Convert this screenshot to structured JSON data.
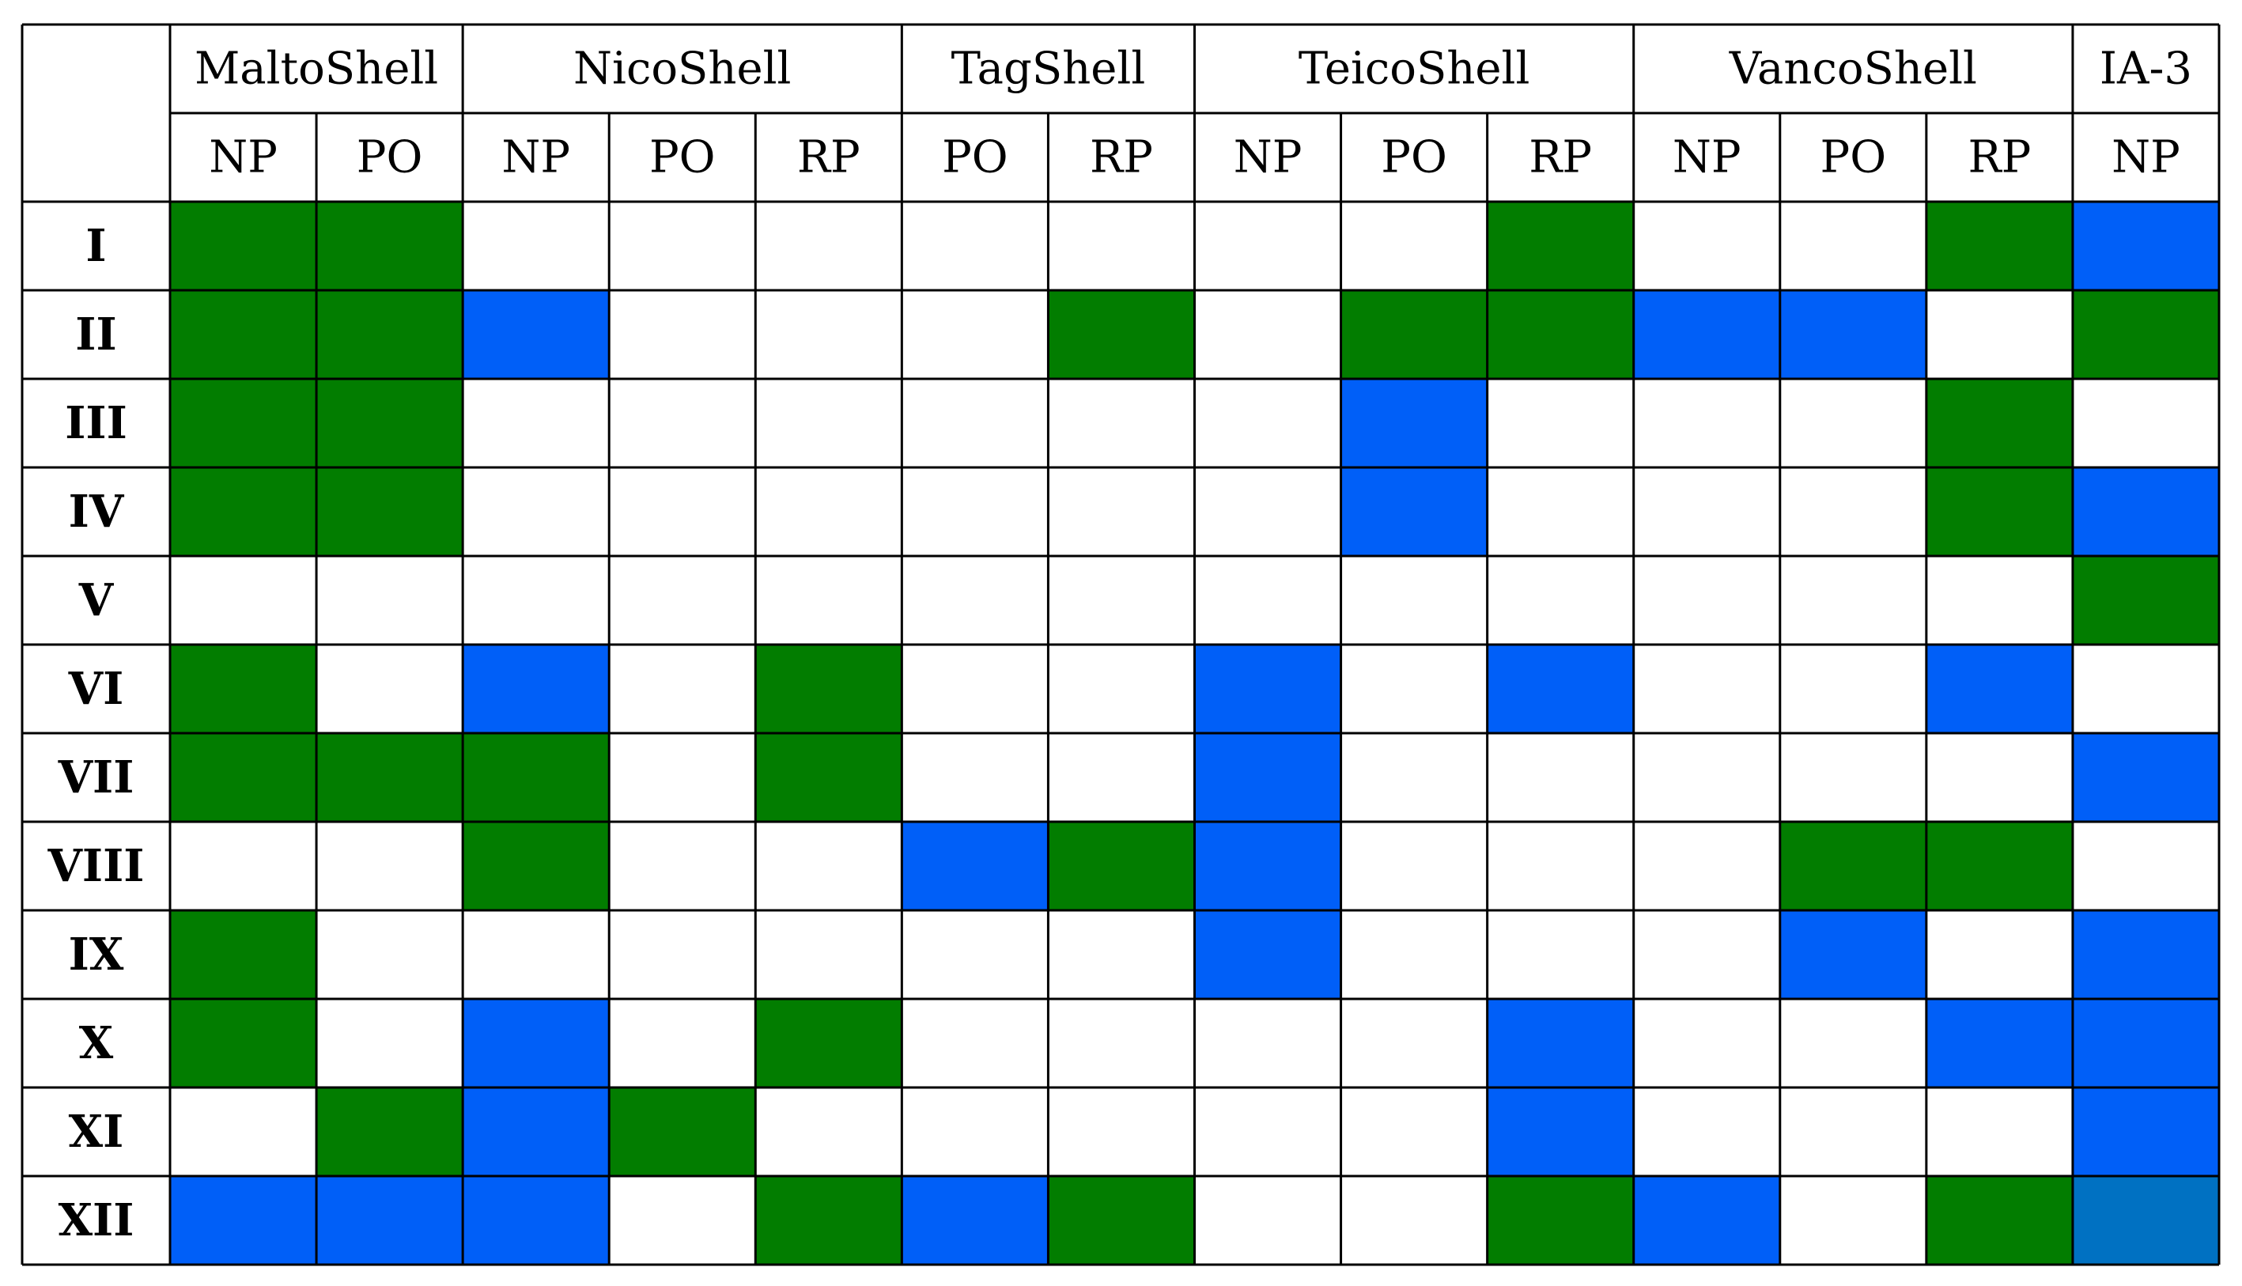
{
  "chart_data": {
    "type": "heatmap",
    "column_groups": [
      {
        "name": "MaltoShell",
        "subcolumns": [
          "NP",
          "PO"
        ]
      },
      {
        "name": "NicoShell",
        "subcolumns": [
          "NP",
          "PO",
          "RP"
        ]
      },
      {
        "name": "TagShell",
        "subcolumns": [
          "PO",
          "RP"
        ]
      },
      {
        "name": "TeicoShell",
        "subcolumns": [
          "NP",
          "PO",
          "RP"
        ]
      },
      {
        "name": "VancoShell",
        "subcolumns": [
          "NP",
          "PO",
          "RP"
        ]
      },
      {
        "name": "IA-3",
        "subcolumns": [
          "NP"
        ]
      }
    ],
    "rows": [
      "I",
      "II",
      "III",
      "IV",
      "V",
      "VI",
      "VII",
      "VIII",
      "IX",
      "X",
      "XI",
      "XII"
    ],
    "cell_colors": {
      "G": "#027d00",
      "B": "#005ff8",
      "D": "#0071c2",
      "W": "#ffffff"
    },
    "cells": [
      [
        "G",
        "G",
        "W",
        "W",
        "W",
        "W",
        "W",
        "W",
        "W",
        "G",
        "W",
        "W",
        "G",
        "B"
      ],
      [
        "G",
        "G",
        "B",
        "W",
        "W",
        "W",
        "G",
        "W",
        "G",
        "G",
        "B",
        "B",
        "W",
        "G"
      ],
      [
        "G",
        "G",
        "W",
        "W",
        "W",
        "W",
        "W",
        "W",
        "B",
        "W",
        "W",
        "W",
        "G",
        "W"
      ],
      [
        "G",
        "G",
        "W",
        "W",
        "W",
        "W",
        "W",
        "W",
        "B",
        "W",
        "W",
        "W",
        "G",
        "B"
      ],
      [
        "W",
        "W",
        "W",
        "W",
        "W",
        "W",
        "W",
        "W",
        "W",
        "W",
        "W",
        "W",
        "W",
        "G"
      ],
      [
        "G",
        "W",
        "B",
        "W",
        "G",
        "W",
        "W",
        "B",
        "W",
        "B",
        "W",
        "W",
        "B",
        "W"
      ],
      [
        "G",
        "G",
        "G",
        "W",
        "G",
        "W",
        "W",
        "B",
        "W",
        "W",
        "W",
        "W",
        "W",
        "B"
      ],
      [
        "W",
        "W",
        "G",
        "W",
        "W",
        "B",
        "G",
        "B",
        "W",
        "W",
        "W",
        "G",
        "G",
        "W"
      ],
      [
        "G",
        "W",
        "W",
        "W",
        "W",
        "W",
        "W",
        "B",
        "W",
        "W",
        "W",
        "B",
        "W",
        "B"
      ],
      [
        "G",
        "W",
        "B",
        "W",
        "G",
        "W",
        "W",
        "W",
        "W",
        "B",
        "W",
        "W",
        "B",
        "B"
      ],
      [
        "W",
        "G",
        "B",
        "G",
        "W",
        "W",
        "W",
        "W",
        "W",
        "B",
        "W",
        "W",
        "W",
        "B"
      ],
      [
        "B",
        "B",
        "B",
        "W",
        "G",
        "B",
        "G",
        "W",
        "W",
        "G",
        "B",
        "W",
        "G",
        "D"
      ]
    ],
    "grid": true
  }
}
